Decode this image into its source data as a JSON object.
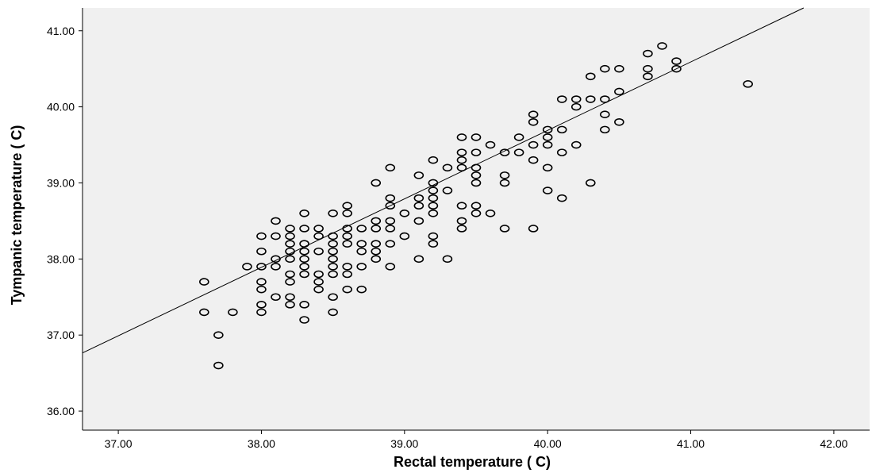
{
  "chart_data": {
    "type": "scatter",
    "title": "",
    "xlabel": "Rectal temperature ( C)",
    "ylabel": "Tympanic temperature ( C)",
    "xlim": [
      36.75,
      42.25
    ],
    "ylim": [
      35.75,
      41.3
    ],
    "x_ticks": [
      "37.00",
      "38.00",
      "39.00",
      "40.00",
      "41.00",
      "42.00"
    ],
    "y_ticks": [
      "36.00",
      "37.00",
      "38.00",
      "39.00",
      "40.00",
      "41.00"
    ],
    "grid": false,
    "plot_background": "#f0f0f0",
    "marker": "open-circle",
    "marker_color": "#000000",
    "fit_line": {
      "type": "linear",
      "slope": 0.9,
      "intercept": 3.69,
      "color": "#000000"
    },
    "points": [
      [
        37.6,
        37.7
      ],
      [
        37.6,
        37.3
      ],
      [
        37.7,
        37.0
      ],
      [
        37.7,
        36.6
      ],
      [
        37.8,
        37.3
      ],
      [
        37.9,
        37.9
      ],
      [
        38.0,
        38.3
      ],
      [
        38.0,
        38.1
      ],
      [
        38.0,
        37.9
      ],
      [
        38.0,
        37.7
      ],
      [
        38.0,
        37.6
      ],
      [
        38.0,
        37.4
      ],
      [
        38.0,
        37.3
      ],
      [
        38.1,
        38.5
      ],
      [
        38.1,
        38.3
      ],
      [
        38.1,
        38.0
      ],
      [
        38.1,
        37.9
      ],
      [
        38.1,
        37.5
      ],
      [
        38.2,
        38.4
      ],
      [
        38.2,
        38.3
      ],
      [
        38.2,
        38.2
      ],
      [
        38.2,
        38.1
      ],
      [
        38.2,
        38.0
      ],
      [
        38.2,
        37.8
      ],
      [
        38.2,
        37.7
      ],
      [
        38.2,
        37.5
      ],
      [
        38.2,
        37.4
      ],
      [
        38.3,
        38.6
      ],
      [
        38.3,
        38.4
      ],
      [
        38.3,
        38.2
      ],
      [
        38.3,
        38.1
      ],
      [
        38.3,
        38.0
      ],
      [
        38.3,
        37.9
      ],
      [
        38.3,
        37.8
      ],
      [
        38.3,
        37.4
      ],
      [
        38.3,
        37.2
      ],
      [
        38.4,
        38.4
      ],
      [
        38.4,
        38.3
      ],
      [
        38.4,
        38.1
      ],
      [
        38.4,
        37.8
      ],
      [
        38.4,
        37.7
      ],
      [
        38.4,
        37.6
      ],
      [
        38.5,
        38.6
      ],
      [
        38.5,
        38.3
      ],
      [
        38.5,
        38.2
      ],
      [
        38.5,
        38.1
      ],
      [
        38.5,
        38.0
      ],
      [
        38.5,
        37.9
      ],
      [
        38.5,
        37.8
      ],
      [
        38.5,
        37.5
      ],
      [
        38.5,
        37.3
      ],
      [
        38.6,
        38.7
      ],
      [
        38.6,
        38.6
      ],
      [
        38.6,
        38.4
      ],
      [
        38.6,
        38.3
      ],
      [
        38.6,
        38.2
      ],
      [
        38.6,
        37.9
      ],
      [
        38.6,
        37.8
      ],
      [
        38.6,
        37.6
      ],
      [
        38.7,
        38.4
      ],
      [
        38.7,
        38.2
      ],
      [
        38.7,
        38.1
      ],
      [
        38.7,
        37.9
      ],
      [
        38.7,
        37.6
      ],
      [
        38.8,
        39.0
      ],
      [
        38.8,
        38.5
      ],
      [
        38.8,
        38.4
      ],
      [
        38.8,
        38.2
      ],
      [
        38.8,
        38.1
      ],
      [
        38.8,
        38.0
      ],
      [
        38.9,
        39.2
      ],
      [
        38.9,
        38.8
      ],
      [
        38.9,
        38.7
      ],
      [
        38.9,
        38.5
      ],
      [
        38.9,
        38.4
      ],
      [
        38.9,
        38.2
      ],
      [
        38.9,
        37.9
      ],
      [
        39.0,
        38.6
      ],
      [
        39.0,
        38.3
      ],
      [
        39.1,
        39.1
      ],
      [
        39.1,
        38.8
      ],
      [
        39.1,
        38.7
      ],
      [
        39.1,
        38.5
      ],
      [
        39.1,
        38.0
      ],
      [
        39.2,
        39.3
      ],
      [
        39.2,
        39.0
      ],
      [
        39.2,
        38.9
      ],
      [
        39.2,
        38.8
      ],
      [
        39.2,
        38.7
      ],
      [
        39.2,
        38.6
      ],
      [
        39.2,
        38.3
      ],
      [
        39.2,
        38.2
      ],
      [
        39.3,
        39.2
      ],
      [
        39.3,
        38.9
      ],
      [
        39.3,
        38.0
      ],
      [
        39.4,
        39.6
      ],
      [
        39.4,
        39.4
      ],
      [
        39.4,
        39.3
      ],
      [
        39.4,
        39.2
      ],
      [
        39.4,
        38.7
      ],
      [
        39.4,
        38.5
      ],
      [
        39.4,
        38.4
      ],
      [
        39.5,
        39.6
      ],
      [
        39.5,
        39.4
      ],
      [
        39.5,
        39.2
      ],
      [
        39.5,
        39.1
      ],
      [
        39.5,
        39.0
      ],
      [
        39.5,
        38.7
      ],
      [
        39.5,
        38.6
      ],
      [
        39.6,
        39.5
      ],
      [
        39.6,
        38.6
      ],
      [
        39.7,
        39.4
      ],
      [
        39.7,
        39.1
      ],
      [
        39.7,
        39.0
      ],
      [
        39.7,
        38.4
      ],
      [
        39.8,
        39.6
      ],
      [
        39.8,
        39.4
      ],
      [
        39.9,
        39.9
      ],
      [
        39.9,
        39.8
      ],
      [
        39.9,
        39.5
      ],
      [
        39.9,
        39.3
      ],
      [
        39.9,
        38.4
      ],
      [
        40.0,
        39.7
      ],
      [
        40.0,
        39.6
      ],
      [
        40.0,
        39.5
      ],
      [
        40.0,
        39.2
      ],
      [
        40.0,
        38.9
      ],
      [
        40.1,
        40.1
      ],
      [
        40.1,
        39.7
      ],
      [
        40.1,
        39.4
      ],
      [
        40.1,
        38.8
      ],
      [
        40.2,
        40.1
      ],
      [
        40.2,
        40.0
      ],
      [
        40.2,
        39.5
      ],
      [
        40.3,
        40.4
      ],
      [
        40.3,
        40.1
      ],
      [
        40.3,
        39.0
      ],
      [
        40.4,
        40.5
      ],
      [
        40.4,
        40.1
      ],
      [
        40.4,
        39.9
      ],
      [
        40.4,
        39.7
      ],
      [
        40.5,
        40.5
      ],
      [
        40.5,
        40.2
      ],
      [
        40.5,
        39.8
      ],
      [
        40.7,
        40.7
      ],
      [
        40.7,
        40.5
      ],
      [
        40.7,
        40.4
      ],
      [
        40.8,
        40.8
      ],
      [
        40.9,
        40.6
      ],
      [
        40.9,
        40.5
      ],
      [
        41.4,
        40.3
      ]
    ]
  }
}
